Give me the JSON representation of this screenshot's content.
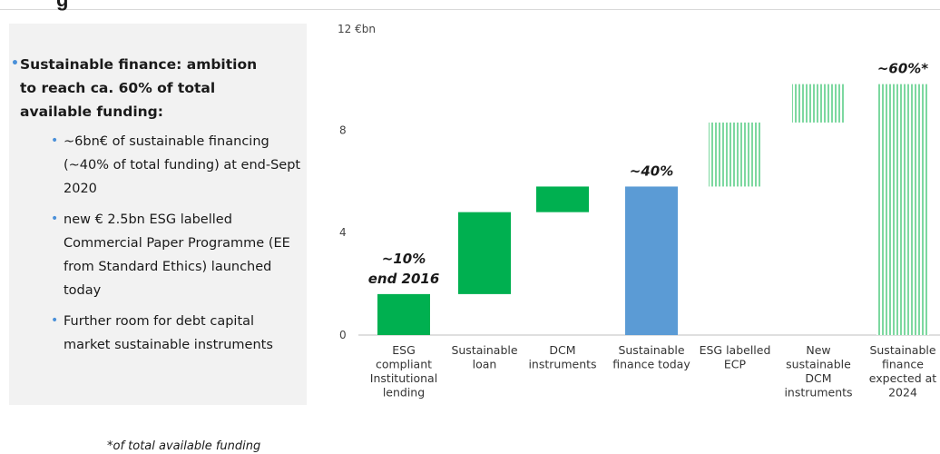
{
  "header": {
    "partial_title": "g"
  },
  "left_panel": {
    "main_bullet": "Sustainable finance: ambition to reach ca. 60% of total available funding:",
    "sub_bullets": [
      "~6bn€ of sustainable financing (~40% of total funding) at end-Sept 2020",
      "new € 2.5bn ESG labelled Commercial Paper Programme (EE from Standard Ethics) launched today",
      "Further room for debt capital market sustainable instruments"
    ]
  },
  "footnote": "*of total available funding",
  "chart_data": {
    "type": "bar",
    "subtype": "waterfall",
    "y_unit_label": "12 €bn",
    "ylim": [
      0,
      12
    ],
    "yticks": [
      0,
      4,
      8
    ],
    "grid": false,
    "colors": {
      "green": "#00b050",
      "blue": "#5b9bd5",
      "light_green": "#7dd8a0"
    },
    "categories": [
      "ESG compliant Institutional lending",
      "Sustainable loan",
      "DCM instruments",
      "Sustainable finance today",
      "ESG labelled ECP",
      "New sustainable DCM instruments",
      "Sustainable finance expected at 2024"
    ],
    "category_lines": [
      [
        "ESG",
        "compliant",
        "Institutional",
        "lending"
      ],
      [
        "Sustainable",
        "loan"
      ],
      [
        "DCM",
        "instruments"
      ],
      [
        "Sustainable",
        "finance today"
      ],
      [
        "ESG labelled",
        "ECP"
      ],
      [
        "New",
        "sustainable",
        "DCM",
        "instruments"
      ],
      [
        "Sustainable",
        "finance",
        "expected at",
        "2024"
      ]
    ],
    "bars": [
      {
        "start": 0,
        "end": 1.6,
        "style": "solid",
        "color": "green"
      },
      {
        "start": 1.6,
        "end": 4.8,
        "style": "solid",
        "color": "green"
      },
      {
        "start": 4.8,
        "end": 5.8,
        "style": "solid",
        "color": "green"
      },
      {
        "start": 0,
        "end": 5.8,
        "style": "solid",
        "color": "blue"
      },
      {
        "start": 5.8,
        "end": 8.3,
        "style": "striped",
        "color": "light_green"
      },
      {
        "start": 8.3,
        "end": 9.8,
        "style": "striped",
        "color": "light_green"
      },
      {
        "start": 0,
        "end": 9.8,
        "style": "striped",
        "color": "light_green"
      }
    ],
    "annotations": [
      {
        "bar": 0,
        "lines": [
          "~10%",
          "end 2016"
        ]
      },
      {
        "bar": 3,
        "lines": [
          "~40%"
        ]
      },
      {
        "bar": 6,
        "lines": [
          "~60%*"
        ]
      }
    ]
  }
}
